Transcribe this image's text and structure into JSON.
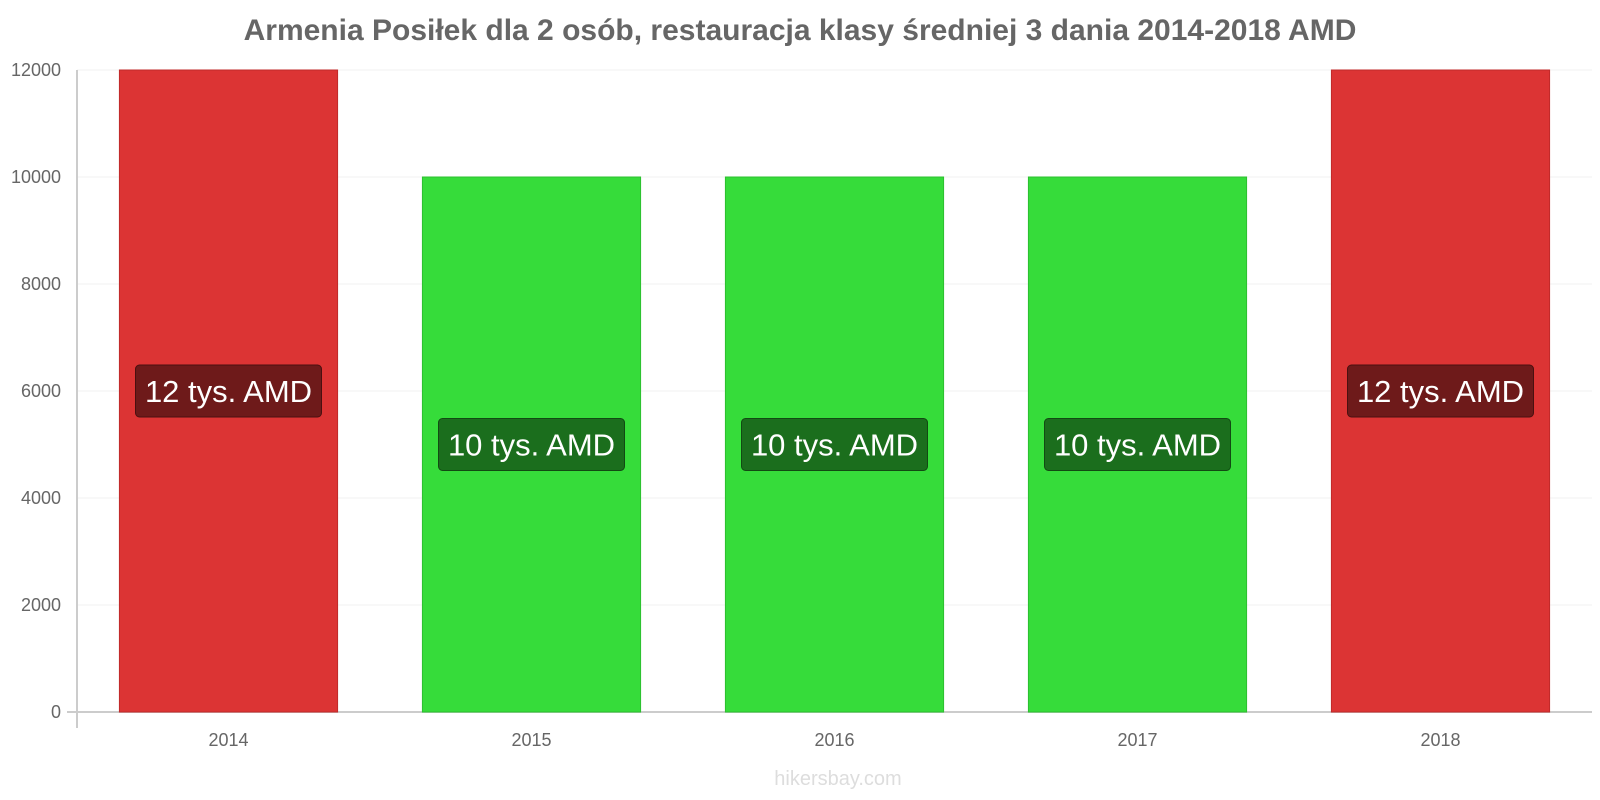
{
  "chart_data": {
    "type": "bar",
    "title": "Armenia Posiłek dla 2 osób, restauracja klasy średniej 3 dania 2014-2018 AMD",
    "categories": [
      "2014",
      "2015",
      "2016",
      "2017",
      "2018"
    ],
    "values": [
      12000,
      10000,
      10000,
      10000,
      12000
    ],
    "data_labels": [
      "12 tys. AMD",
      "10 tys. AMD",
      "10 tys. AMD",
      "10 tys. AMD",
      "12 tys. AMD"
    ],
    "ylim": [
      0,
      12000
    ],
    "yticks": [
      "0",
      "2000",
      "4000",
      "6000",
      "8000",
      "10000",
      "12000"
    ],
    "xlabel": "",
    "ylabel": "",
    "grid": true,
    "colors": {
      "bar_up": "#dc3434",
      "bar_up_label_bg": "#6e1a1a",
      "bar_down": "#36dc3a",
      "bar_down_label_bg": "#1b6e1d"
    },
    "bar_trend": [
      "up",
      "down",
      "down",
      "down",
      "up"
    ]
  },
  "credit": "hikersbay.com"
}
